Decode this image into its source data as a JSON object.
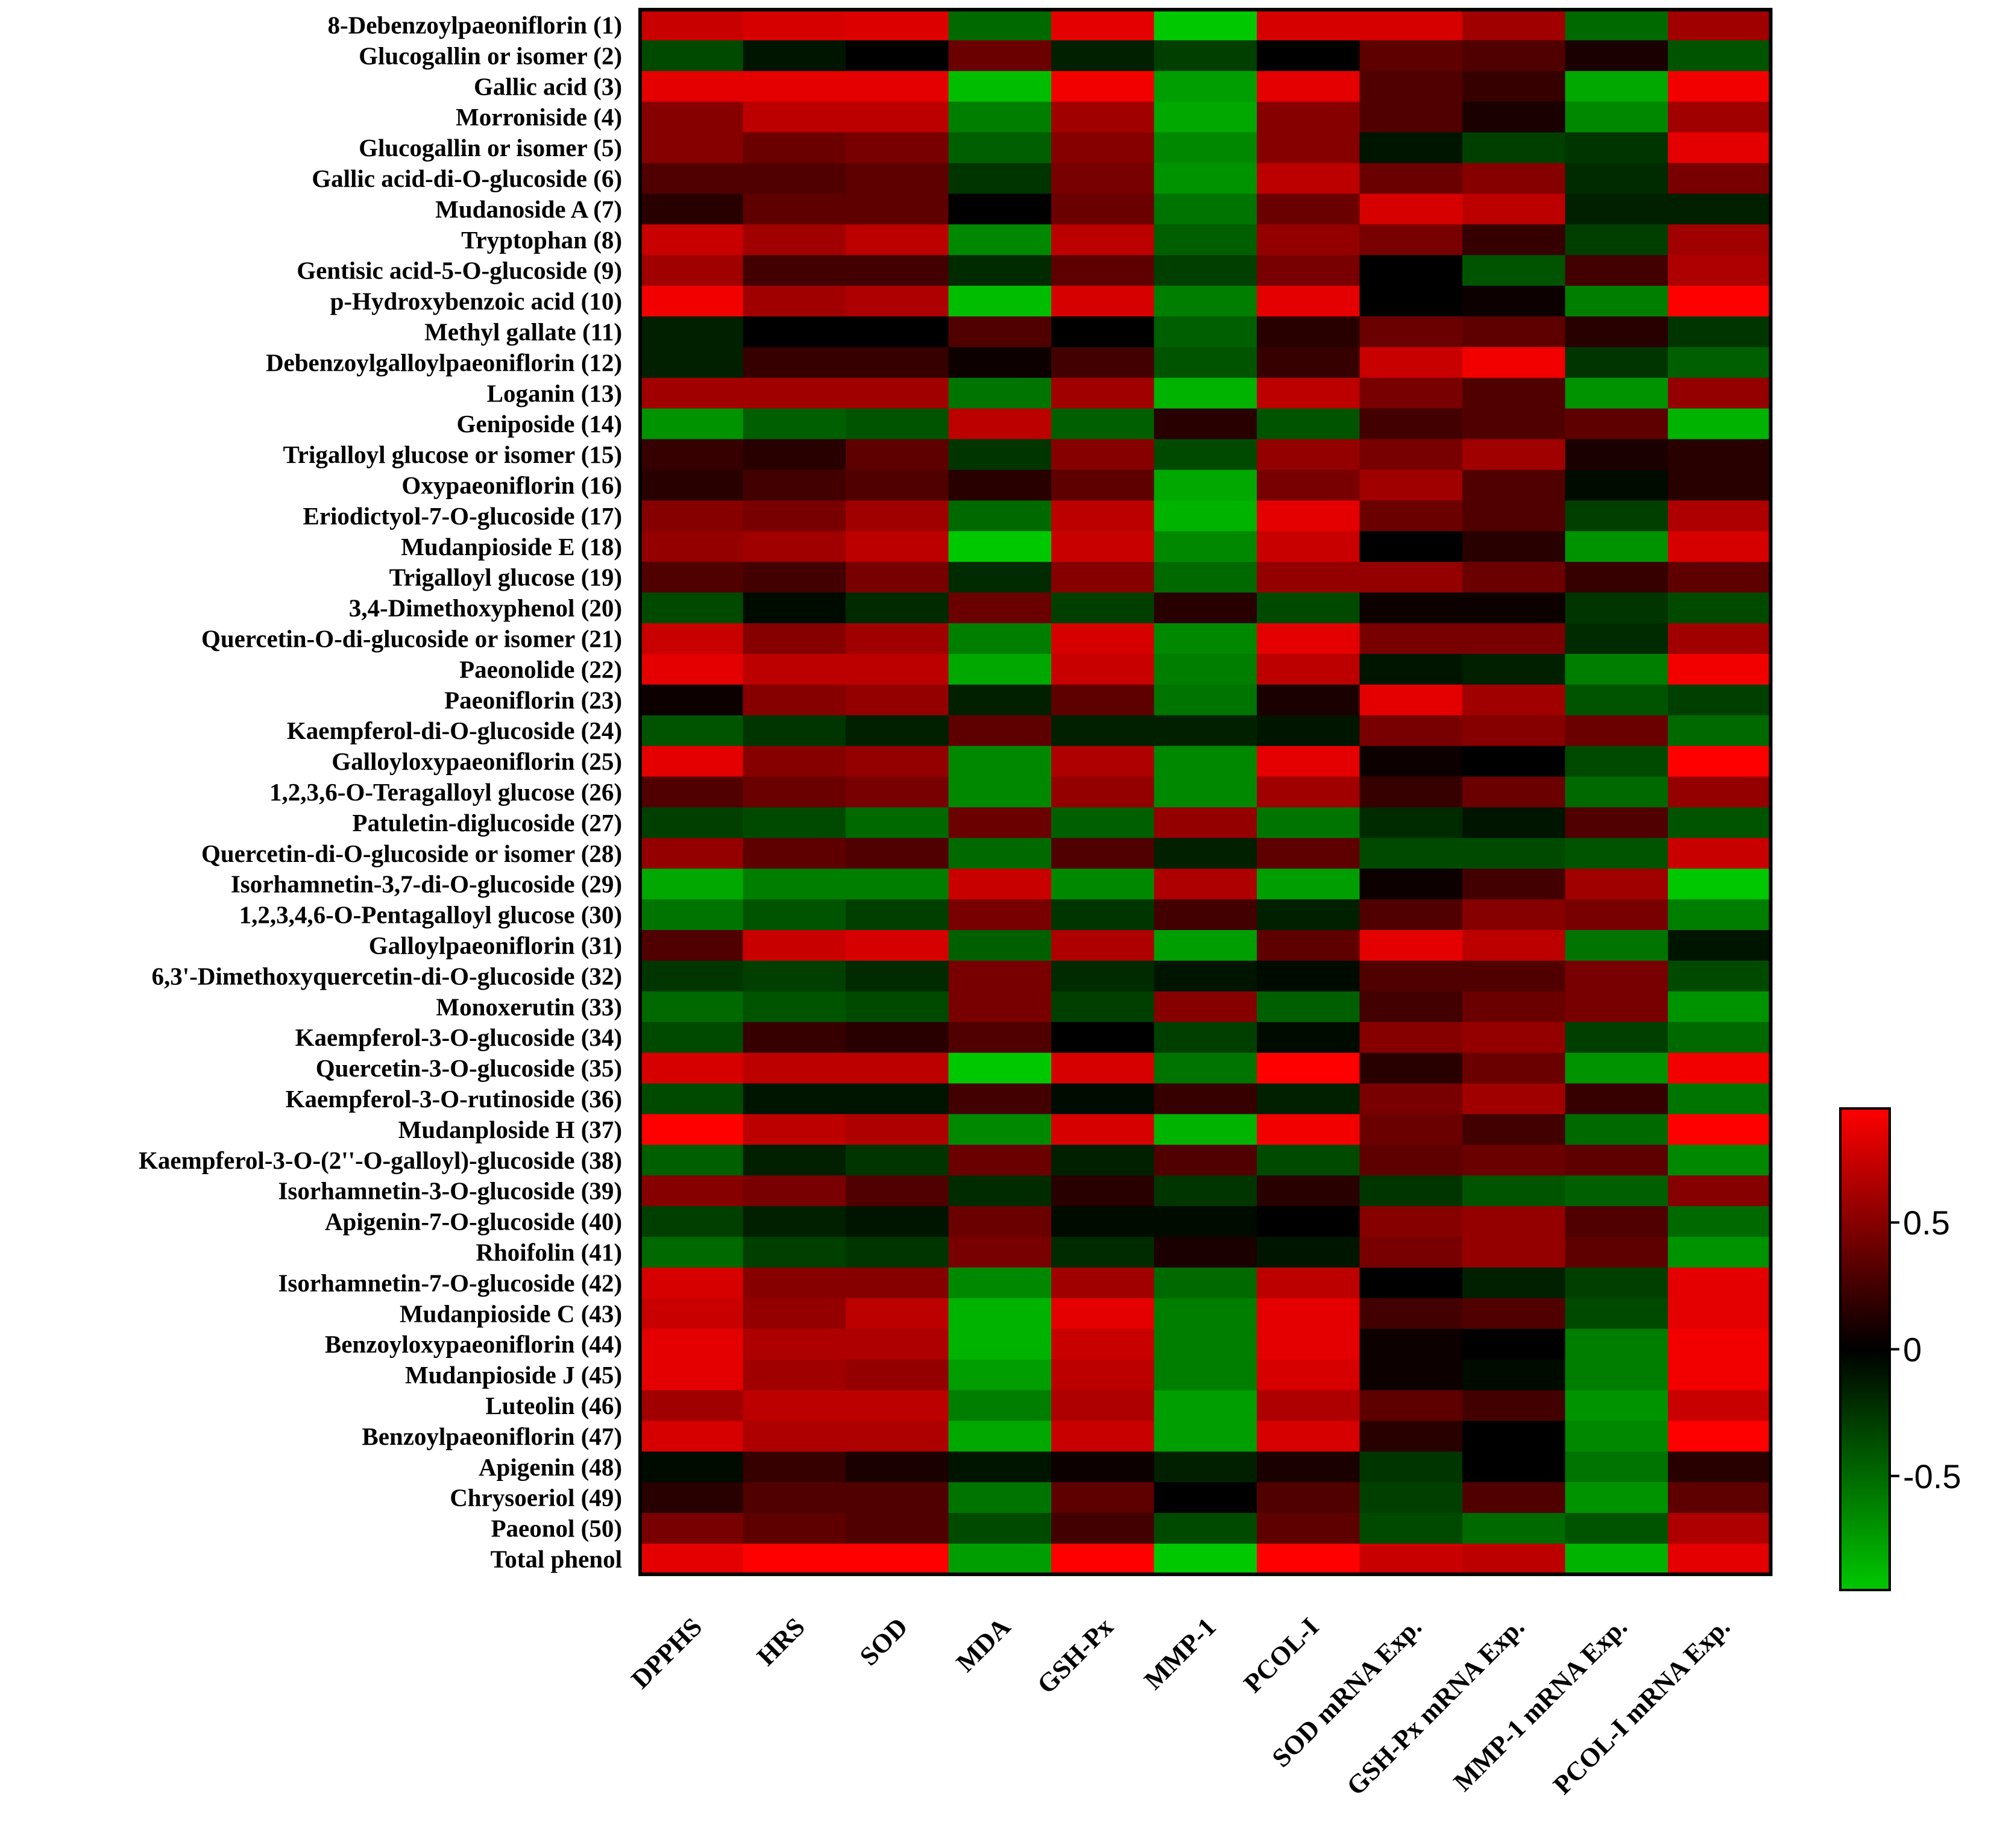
{
  "chart_data": {
    "type": "heatmap",
    "title": "",
    "rows": [
      "8-Debenzoylpaeoniflorin (1)",
      "Glucogallin or isomer (2)",
      "Gallic acid (3)",
      "Morroniside (4)",
      "Glucogallin or isomer (5)",
      "Gallic acid-di-O-glucoside (6)",
      "Mudanoside A (7)",
      "Tryptophan (8)",
      "Gentisic acid-5-O-glucoside (9)",
      "p-Hydroxybenzoic acid (10)",
      "Methyl gallate (11)",
      "Debenzoylgalloylpaeoniflorin (12)",
      "Loganin (13)",
      "Geniposide (14)",
      "Trigalloyl glucose or isomer (15)",
      "Oxypaeoniflorin (16)",
      "Eriodictyol-7-O-glucoside (17)",
      "Mudanpioside E (18)",
      "Trigalloyl glucose (19)",
      "3,4-Dimethoxyphenol (20)",
      "Quercetin-O-di-glucoside or isomer (21)",
      "Paeonolide (22)",
      "Paeoniflorin (23)",
      "Kaempferol-di-O-glucoside (24)",
      "Galloyloxypaeoniflorin (25)",
      "1,2,3,6-O-Teragalloyl glucose (26)",
      "Patuletin-diglucoside (27)",
      "Quercetin-di-O-glucoside or isomer (28)",
      "Isorhamnetin-3,7-di-O-glucoside (29)",
      "1,2,3,4,6-O-Pentagalloyl glucose (30)",
      "Galloylpaeoniflorin (31)",
      "6,3'-Dimethoxyquercetin-di-O-glucoside (32)",
      "Monoxerutin (33)",
      "Kaempferol-3-O-glucoside (34)",
      "Quercetin-3-O-glucoside (35)",
      "Kaempferol-3-O-rutinoside (36)",
      "Mudanploside H (37)",
      "Kaempferol-3-O-(2''-O-galloyl)-glucoside (38)",
      "Isorhamnetin-3-O-glucoside (39)",
      "Apigenin-7-O-glucoside (40)",
      "Rhoifolin (41)",
      "Isorhamnetin-7-O-glucoside (42)",
      "Mudanpioside C (43)",
      "Benzoyloxypaeoniflorin (44)",
      "Mudanpioside J (45)",
      "Luteolin (46)",
      "Benzoylpaeoniflorin (47)",
      "Apigenin (48)",
      "Chrysoeriol (49)",
      "Paeonol (50)",
      "Total phenol"
    ],
    "columns": [
      "DPPHS",
      "HRS",
      "SOD",
      "MDA",
      "GSH-Px",
      "MMP-1",
      "PCOL-I",
      "SOD mRNA Exp.",
      "GSH-Px mRNA Exp.",
      "MMP-1 mRNA Exp.",
      "PCOL-I mRNA Exp."
    ],
    "values": [
      [
        0.75,
        0.8,
        0.82,
        -0.5,
        0.85,
        -0.95,
        0.8,
        0.8,
        0.6,
        -0.5,
        0.6
      ],
      [
        -0.35,
        -0.1,
        0.0,
        0.4,
        -0.15,
        -0.3,
        0.0,
        0.35,
        0.3,
        0.1,
        -0.4
      ],
      [
        0.85,
        0.85,
        0.85,
        -0.9,
        0.9,
        -0.75,
        0.85,
        0.3,
        0.2,
        -0.8,
        0.9
      ],
      [
        0.5,
        0.7,
        0.7,
        -0.6,
        0.6,
        -0.8,
        0.5,
        0.3,
        0.1,
        -0.65,
        0.6
      ],
      [
        0.5,
        0.4,
        0.45,
        -0.45,
        0.5,
        -0.65,
        0.5,
        -0.1,
        -0.3,
        -0.25,
        0.85
      ],
      [
        0.3,
        0.3,
        0.35,
        -0.25,
        0.45,
        -0.7,
        0.7,
        0.4,
        0.5,
        -0.2,
        0.45
      ],
      [
        0.15,
        0.35,
        0.35,
        0.0,
        0.4,
        -0.55,
        0.4,
        0.8,
        0.7,
        -0.15,
        -0.15
      ],
      [
        0.75,
        0.6,
        0.7,
        -0.65,
        0.7,
        -0.45,
        0.55,
        0.45,
        0.2,
        -0.3,
        0.6
      ],
      [
        0.6,
        0.25,
        0.25,
        -0.2,
        0.35,
        -0.3,
        0.45,
        0.0,
        -0.4,
        0.25,
        0.65
      ],
      [
        0.9,
        0.6,
        0.65,
        -0.9,
        0.8,
        -0.6,
        0.85,
        0.0,
        0.05,
        -0.6,
        0.95
      ],
      [
        -0.15,
        0.0,
        0.0,
        0.3,
        0.0,
        -0.45,
        0.15,
        0.4,
        0.35,
        0.15,
        -0.25
      ],
      [
        -0.15,
        0.2,
        0.2,
        0.05,
        0.25,
        -0.4,
        0.2,
        0.75,
        0.9,
        -0.25,
        -0.45
      ],
      [
        0.6,
        0.6,
        0.6,
        -0.55,
        0.6,
        -0.85,
        0.7,
        0.45,
        0.3,
        -0.7,
        0.55
      ],
      [
        -0.7,
        -0.45,
        -0.4,
        0.7,
        -0.45,
        0.15,
        -0.4,
        0.25,
        0.3,
        0.35,
        -0.85
      ],
      [
        0.2,
        0.15,
        0.35,
        -0.25,
        0.5,
        -0.35,
        0.55,
        0.45,
        0.6,
        0.1,
        0.15
      ],
      [
        0.15,
        0.25,
        0.3,
        0.15,
        0.35,
        -0.8,
        0.45,
        0.6,
        0.3,
        -0.05,
        0.15
      ],
      [
        0.5,
        0.45,
        0.6,
        -0.5,
        0.7,
        -0.85,
        0.85,
        0.4,
        0.3,
        -0.3,
        0.65
      ],
      [
        0.55,
        0.6,
        0.7,
        -0.95,
        0.75,
        -0.65,
        0.75,
        0.0,
        0.15,
        -0.7,
        0.8
      ],
      [
        0.3,
        0.25,
        0.45,
        -0.2,
        0.5,
        -0.5,
        0.55,
        0.55,
        0.4,
        0.2,
        0.35
      ],
      [
        -0.35,
        -0.05,
        -0.2,
        0.4,
        -0.3,
        0.15,
        -0.35,
        0.05,
        0.05,
        -0.25,
        -0.35
      ],
      [
        0.75,
        0.5,
        0.6,
        -0.6,
        0.8,
        -0.65,
        0.85,
        0.45,
        0.45,
        -0.2,
        0.6
      ],
      [
        0.85,
        0.7,
        0.7,
        -0.8,
        0.75,
        -0.6,
        0.7,
        -0.1,
        -0.15,
        -0.6,
        0.9
      ],
      [
        0.05,
        0.5,
        0.55,
        -0.15,
        0.35,
        -0.55,
        0.1,
        0.85,
        0.6,
        -0.4,
        -0.3
      ],
      [
        -0.4,
        -0.25,
        -0.15,
        0.35,
        -0.15,
        -0.15,
        -0.1,
        0.45,
        0.5,
        0.4,
        -0.5
      ],
      [
        0.85,
        0.5,
        0.55,
        -0.65,
        0.65,
        -0.65,
        0.85,
        0.05,
        0.0,
        -0.35,
        0.95
      ],
      [
        0.3,
        0.4,
        0.45,
        -0.65,
        0.55,
        -0.65,
        0.6,
        0.2,
        0.4,
        -0.5,
        0.55
      ],
      [
        -0.3,
        -0.35,
        -0.5,
        0.4,
        -0.45,
        0.55,
        -0.55,
        -0.2,
        -0.1,
        0.3,
        -0.4
      ],
      [
        0.55,
        0.35,
        0.3,
        -0.5,
        0.3,
        -0.15,
        0.35,
        -0.35,
        -0.35,
        -0.4,
        0.75
      ],
      [
        -0.8,
        -0.6,
        -0.6,
        0.75,
        -0.65,
        0.65,
        -0.75,
        0.05,
        0.25,
        0.6,
        -0.95
      ],
      [
        -0.55,
        -0.4,
        -0.3,
        0.45,
        -0.25,
        0.25,
        -0.15,
        0.3,
        0.5,
        0.45,
        -0.6
      ],
      [
        0.3,
        0.75,
        0.8,
        -0.45,
        0.65,
        -0.75,
        0.35,
        0.85,
        0.7,
        -0.55,
        -0.1
      ],
      [
        -0.25,
        -0.3,
        -0.2,
        0.45,
        -0.2,
        -0.1,
        -0.05,
        0.3,
        0.3,
        0.45,
        -0.35
      ],
      [
        -0.5,
        -0.4,
        -0.35,
        0.45,
        -0.3,
        0.5,
        -0.45,
        0.25,
        0.4,
        0.45,
        -0.7
      ],
      [
        -0.35,
        0.2,
        0.15,
        0.3,
        0.0,
        -0.3,
        -0.05,
        0.5,
        0.55,
        -0.3,
        -0.5
      ],
      [
        0.8,
        0.7,
        0.7,
        -0.95,
        0.8,
        -0.55,
        0.95,
        0.15,
        0.4,
        -0.7,
        0.9
      ],
      [
        -0.35,
        -0.1,
        -0.1,
        0.25,
        -0.05,
        0.2,
        -0.15,
        0.45,
        0.6,
        0.2,
        -0.55
      ],
      [
        0.95,
        0.7,
        0.65,
        -0.65,
        0.8,
        -0.85,
        0.9,
        0.4,
        0.25,
        -0.5,
        0.95
      ],
      [
        -0.45,
        -0.15,
        -0.25,
        0.4,
        -0.15,
        0.3,
        -0.35,
        0.35,
        0.4,
        0.35,
        -0.65
      ],
      [
        0.5,
        0.45,
        0.3,
        -0.2,
        0.15,
        -0.25,
        0.15,
        -0.25,
        -0.4,
        -0.45,
        0.5
      ],
      [
        -0.3,
        -0.15,
        -0.1,
        0.4,
        -0.05,
        -0.05,
        0.0,
        0.5,
        0.55,
        0.3,
        -0.5
      ],
      [
        -0.5,
        -0.3,
        -0.25,
        0.45,
        -0.2,
        0.1,
        -0.1,
        0.45,
        0.55,
        0.35,
        -0.7
      ],
      [
        0.8,
        0.5,
        0.5,
        -0.65,
        0.6,
        -0.5,
        0.7,
        0.0,
        -0.15,
        -0.3,
        0.85
      ],
      [
        0.75,
        0.55,
        0.7,
        -0.85,
        0.85,
        -0.6,
        0.85,
        0.25,
        0.3,
        -0.35,
        0.85
      ],
      [
        0.85,
        0.65,
        0.65,
        -0.85,
        0.75,
        -0.6,
        0.85,
        0.05,
        0.0,
        -0.6,
        0.9
      ],
      [
        0.85,
        0.6,
        0.55,
        -0.75,
        0.7,
        -0.6,
        0.8,
        0.05,
        -0.05,
        -0.6,
        0.9
      ],
      [
        0.6,
        0.7,
        0.7,
        -0.6,
        0.65,
        -0.75,
        0.65,
        0.35,
        0.25,
        -0.7,
        0.75
      ],
      [
        0.8,
        0.65,
        0.65,
        -0.8,
        0.75,
        -0.75,
        0.8,
        0.15,
        0.0,
        -0.65,
        0.95
      ],
      [
        -0.05,
        0.2,
        0.1,
        -0.1,
        0.05,
        -0.15,
        0.1,
        -0.25,
        0.0,
        -0.55,
        0.15
      ],
      [
        0.15,
        0.3,
        0.3,
        -0.55,
        0.35,
        0.0,
        0.3,
        -0.3,
        0.3,
        -0.7,
        0.35
      ],
      [
        0.45,
        0.35,
        0.3,
        -0.35,
        0.25,
        -0.35,
        0.35,
        -0.35,
        -0.5,
        -0.4,
        0.65
      ],
      [
        0.85,
        0.95,
        0.95,
        -0.75,
        0.95,
        -0.95,
        0.95,
        0.75,
        0.7,
        -0.85,
        0.85
      ]
    ],
    "colorbar": {
      "min": -0.95,
      "max": 0.95,
      "ticks": [
        0.5,
        0,
        -0.5
      ],
      "tick_labels": [
        "0.5",
        "0",
        "-0.5"
      ],
      "colors": {
        "low": "#00c800",
        "mid": "#000000",
        "high": "#ff0000"
      }
    },
    "xlabel": "",
    "ylabel": ""
  }
}
